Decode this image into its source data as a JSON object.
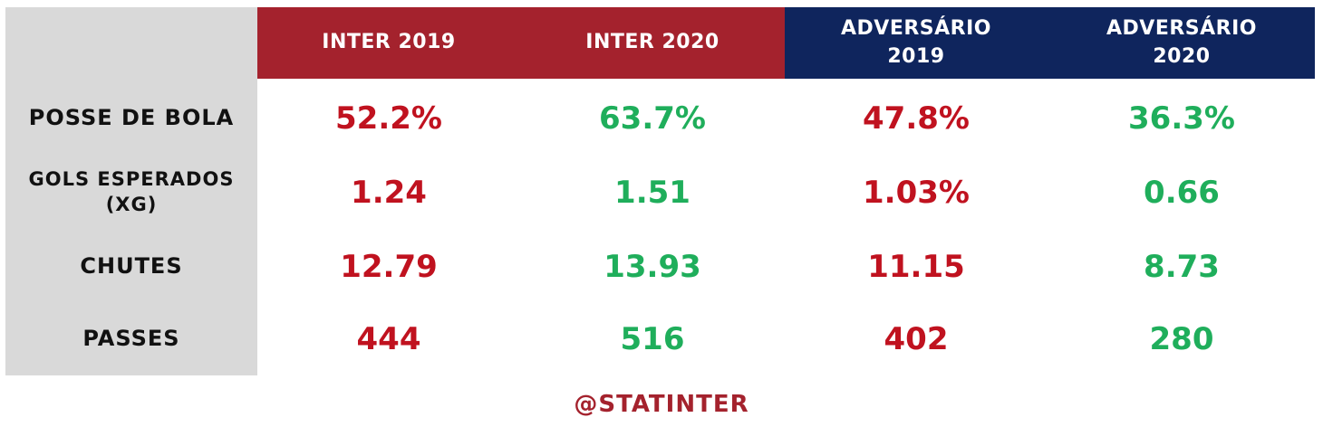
{
  "chart_data": {
    "type": "table",
    "columns": [
      "INTER 2019",
      "INTER 2020",
      "ADVERSÁRIO 2019",
      "ADVERSÁRIO 2020"
    ],
    "rows": [
      {
        "label": "POSSE DE BOLA",
        "values": [
          "52.2%",
          "63.7%",
          "47.8%",
          "36.3%"
        ]
      },
      {
        "label": "GOLS ESPERADOS (XG)",
        "values": [
          "1.24",
          "1.51",
          "1.03%",
          "0.66"
        ]
      },
      {
        "label": "CHUTES",
        "values": [
          "12.79",
          "13.93",
          "11.15",
          "8.73"
        ]
      },
      {
        "label": "PASSES",
        "values": [
          "444",
          "516",
          "402",
          "280"
        ]
      }
    ],
    "column_colors": [
      "#a4222d",
      "#a4222d",
      "#0f255d",
      "#0f255d"
    ],
    "value_colors": [
      "#c0121f",
      "#1fae5b",
      "#c0121f",
      "#1fae5b"
    ]
  },
  "footer": "@STATINTER"
}
